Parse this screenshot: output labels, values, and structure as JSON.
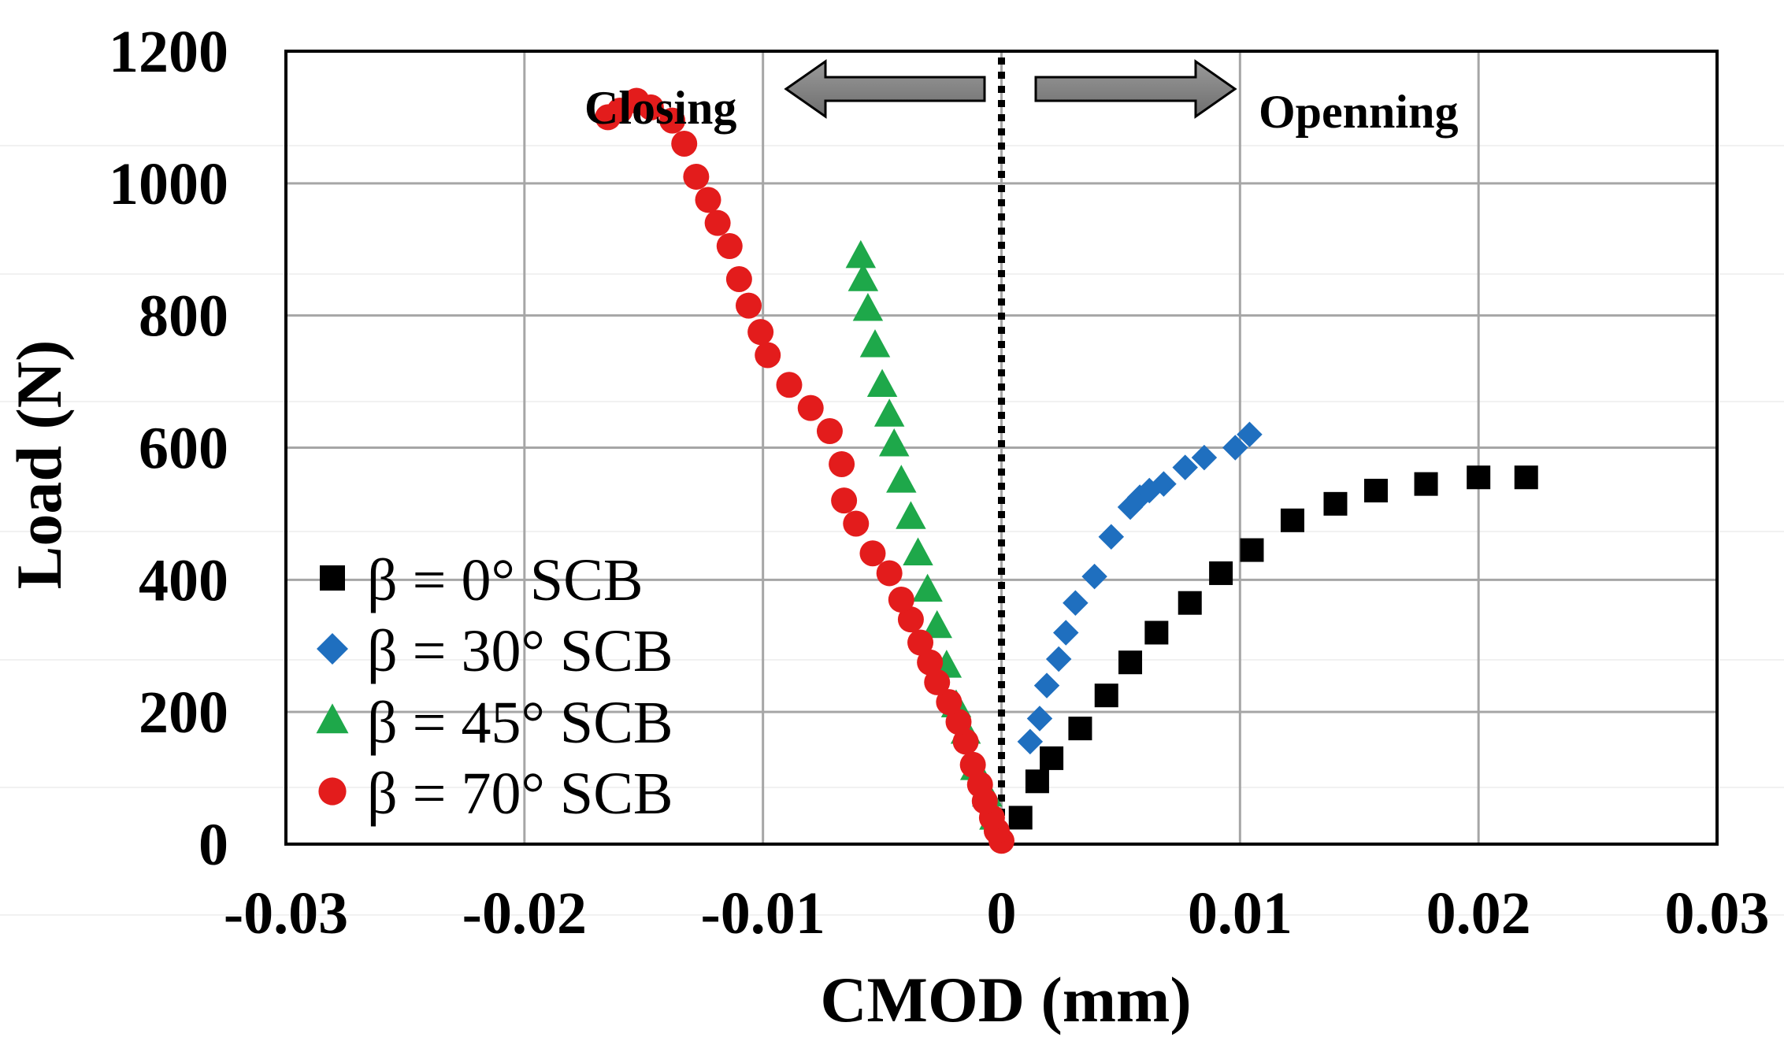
{
  "chart_data": {
    "type": "scatter",
    "title": "",
    "xlabel": "CMOD (mm)",
    "ylabel": "Load (N)",
    "xlim": [
      -0.03,
      0.03
    ],
    "ylim": [
      0,
      1200
    ],
    "x_ticks": [
      -0.03,
      -0.02,
      -0.01,
      0,
      0.01,
      0.02,
      0.03
    ],
    "x_tick_labels": [
      "-0.03",
      "-0.02",
      "-0.01",
      "0",
      "0.01",
      "0.02",
      "0.03"
    ],
    "y_ticks": [
      0,
      200,
      400,
      600,
      800,
      1000,
      1200
    ],
    "y_tick_labels": [
      "0",
      "200",
      "400",
      "600",
      "800",
      "1000",
      "1200"
    ],
    "grid": true,
    "legend_position": "bottom-left",
    "reference_line": {
      "x": 0,
      "style": "dotted",
      "color": "#000000"
    },
    "annotations": [
      {
        "text": "Closing",
        "direction": "left",
        "at_x": -0.0155,
        "at_y": 1120
      },
      {
        "text": "Openning",
        "direction": "right",
        "at_x": 0.0105,
        "at_y": 1120
      }
    ],
    "series": [
      {
        "name": "β = 0° SCB",
        "marker": "square",
        "color": "#000000",
        "x": [
          0.0008,
          0.0015,
          0.0021,
          0.0033,
          0.0044,
          0.0054,
          0.0065,
          0.0079,
          0.0092,
          0.0105,
          0.0122,
          0.014,
          0.0157,
          0.0178,
          0.02,
          0.022
        ],
        "y": [
          40,
          95,
          130,
          175,
          225,
          275,
          320,
          365,
          410,
          445,
          490,
          515,
          535,
          545,
          555,
          555
        ]
      },
      {
        "name": "β = 30° SCB",
        "marker": "diamond",
        "color": "#1f6fbf",
        "x": [
          0.0012,
          0.0016,
          0.0019,
          0.0024,
          0.0027,
          0.0031,
          0.0039,
          0.0046,
          0.0054,
          0.0058,
          0.0062,
          0.0068,
          0.0077,
          0.0085,
          0.0098,
          0.0104
        ],
        "y": [
          155,
          190,
          240,
          280,
          320,
          365,
          405,
          465,
          510,
          525,
          535,
          545,
          570,
          585,
          600,
          620
        ]
      },
      {
        "name": "β = 45° SCB",
        "marker": "triangle",
        "color": "#1ea84a",
        "x": [
          -0.0003,
          -0.0006,
          -0.0011,
          -0.0015,
          -0.0019,
          -0.0023,
          -0.0027,
          -0.0031,
          -0.0035,
          -0.0038,
          -0.0042,
          -0.0045,
          -0.0047,
          -0.005,
          -0.0053,
          -0.0056,
          -0.0058,
          -0.0059
        ],
        "y": [
          40,
          75,
          115,
          170,
          210,
          270,
          330,
          385,
          440,
          495,
          550,
          605,
          650,
          695,
          755,
          810,
          855,
          890
        ]
      },
      {
        "name": "β = 70° SCB",
        "marker": "circle",
        "color": "#e31c1c",
        "x": [
          0.0,
          -0.0002,
          -0.0004,
          -0.0007,
          -0.0009,
          -0.0012,
          -0.0015,
          -0.0018,
          -0.0022,
          -0.0027,
          -0.003,
          -0.0034,
          -0.0038,
          -0.0042,
          -0.0047,
          -0.0054,
          -0.0061,
          -0.0066,
          -0.0067,
          -0.0072,
          -0.008,
          -0.0089,
          -0.0098,
          -0.0101,
          -0.0106,
          -0.011,
          -0.0114,
          -0.0119,
          -0.0123,
          -0.0128,
          -0.0133,
          -0.0138,
          -0.0147,
          -0.0153,
          -0.016,
          -0.0165
        ],
        "y": [
          5,
          20,
          40,
          65,
          90,
          120,
          155,
          185,
          215,
          245,
          275,
          305,
          340,
          370,
          410,
          440,
          485,
          520,
          575,
          625,
          660,
          695,
          740,
          775,
          815,
          855,
          905,
          940,
          975,
          1010,
          1060,
          1095,
          1115,
          1125,
          1110,
          1100
        ]
      }
    ]
  }
}
